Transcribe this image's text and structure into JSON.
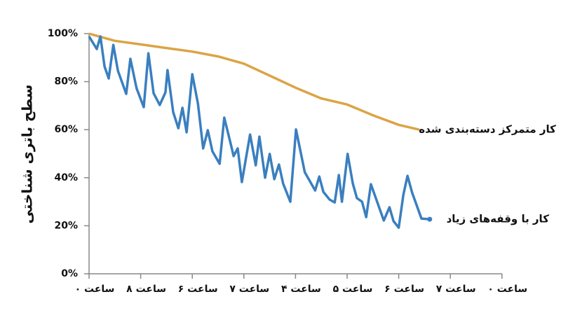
{
  "chart_data": {
    "type": "line",
    "y_label": "سطح باتری شناختی",
    "xlim": [
      0,
      8
    ],
    "xticks": [
      {
        "value": 0,
        "label": "ساعت ۰"
      },
      {
        "value": 1,
        "label": "ساعت ۸"
      },
      {
        "value": 2,
        "label": "ساعت ۶"
      },
      {
        "value": 3,
        "label": "ساعت ۷"
      },
      {
        "value": 4,
        "label": "ساعت ۴"
      },
      {
        "value": 5,
        "label": "ساعت ۵"
      },
      {
        "value": 6,
        "label": "ساعت ۶"
      },
      {
        "value": 7,
        "label": "ساعت ۷"
      },
      {
        "value": 8,
        "label": "ساعت ۰"
      }
    ],
    "ylim": [
      0,
      100
    ],
    "yticks": [
      {
        "value": 0,
        "label": "0%"
      },
      {
        "value": 20,
        "label": "20%"
      },
      {
        "value": 40,
        "label": "40%"
      },
      {
        "value": 60,
        "label": "60%"
      },
      {
        "value": 80,
        "label": "80%"
      },
      {
        "value": 100,
        "label": "100%"
      }
    ],
    "series": [
      {
        "name": "کار متمرکز دسته‌بندی شده",
        "color": "#dba444",
        "x": [
          0,
          0.5,
          1,
          1.5,
          2,
          2.5,
          3,
          3.5,
          4,
          4.5,
          5,
          5.5,
          6,
          6.4
        ],
        "values": [
          100,
          97,
          95.5,
          94,
          92.5,
          90.5,
          87.5,
          82.5,
          77.5,
          73,
          70.5,
          66,
          62,
          60
        ]
      },
      {
        "name": "کار با وقفه‌های زیاد",
        "color": "#3a7fbf",
        "x": [
          0,
          0.15,
          0.22,
          0.3,
          0.38,
          0.47,
          0.56,
          0.72,
          0.8,
          0.92,
          1.06,
          1.15,
          1.25,
          1.37,
          1.48,
          1.52,
          1.63,
          1.73,
          1.81,
          1.89,
          2.0,
          2.11,
          2.21,
          2.3,
          2.39,
          2.53,
          2.62,
          2.76,
          2.8,
          2.88,
          2.96,
          3.12,
          3.23,
          3.3,
          3.41,
          3.5,
          3.59,
          3.68,
          3.76,
          3.9,
          4.01,
          4.18,
          4.38,
          4.46,
          4.54,
          4.66,
          4.76,
          4.84,
          4.9,
          5.01,
          5.11,
          5.19,
          5.29,
          5.37,
          5.46,
          5.71,
          5.82,
          5.9,
          6.0,
          6.09,
          6.17,
          6.26,
          6.44,
          6.6
        ],
        "values": [
          98.8,
          93.6,
          98.8,
          86.3,
          81.3,
          95.3,
          84.5,
          74.9,
          89.5,
          77.3,
          69.4,
          91.8,
          75.2,
          70.3,
          75.5,
          84.8,
          67.3,
          60.6,
          69.1,
          58.9,
          83.1,
          70.8,
          52.2,
          59.8,
          51.0,
          45.8,
          65.0,
          52.8,
          49.0,
          52.2,
          38.2,
          58.0,
          45.2,
          57.1,
          40.0,
          49.9,
          39.4,
          45.5,
          37.6,
          30.0,
          60.1,
          42.3,
          34.7,
          40.5,
          34.1,
          30.9,
          29.7,
          41.1,
          30.0,
          49.9,
          37.6,
          31.5,
          30.0,
          23.6,
          37.3,
          22.2,
          27.7,
          21.9,
          19.2,
          32.9,
          40.8,
          33.8,
          23.0,
          22.7
        ]
      }
    ]
  }
}
